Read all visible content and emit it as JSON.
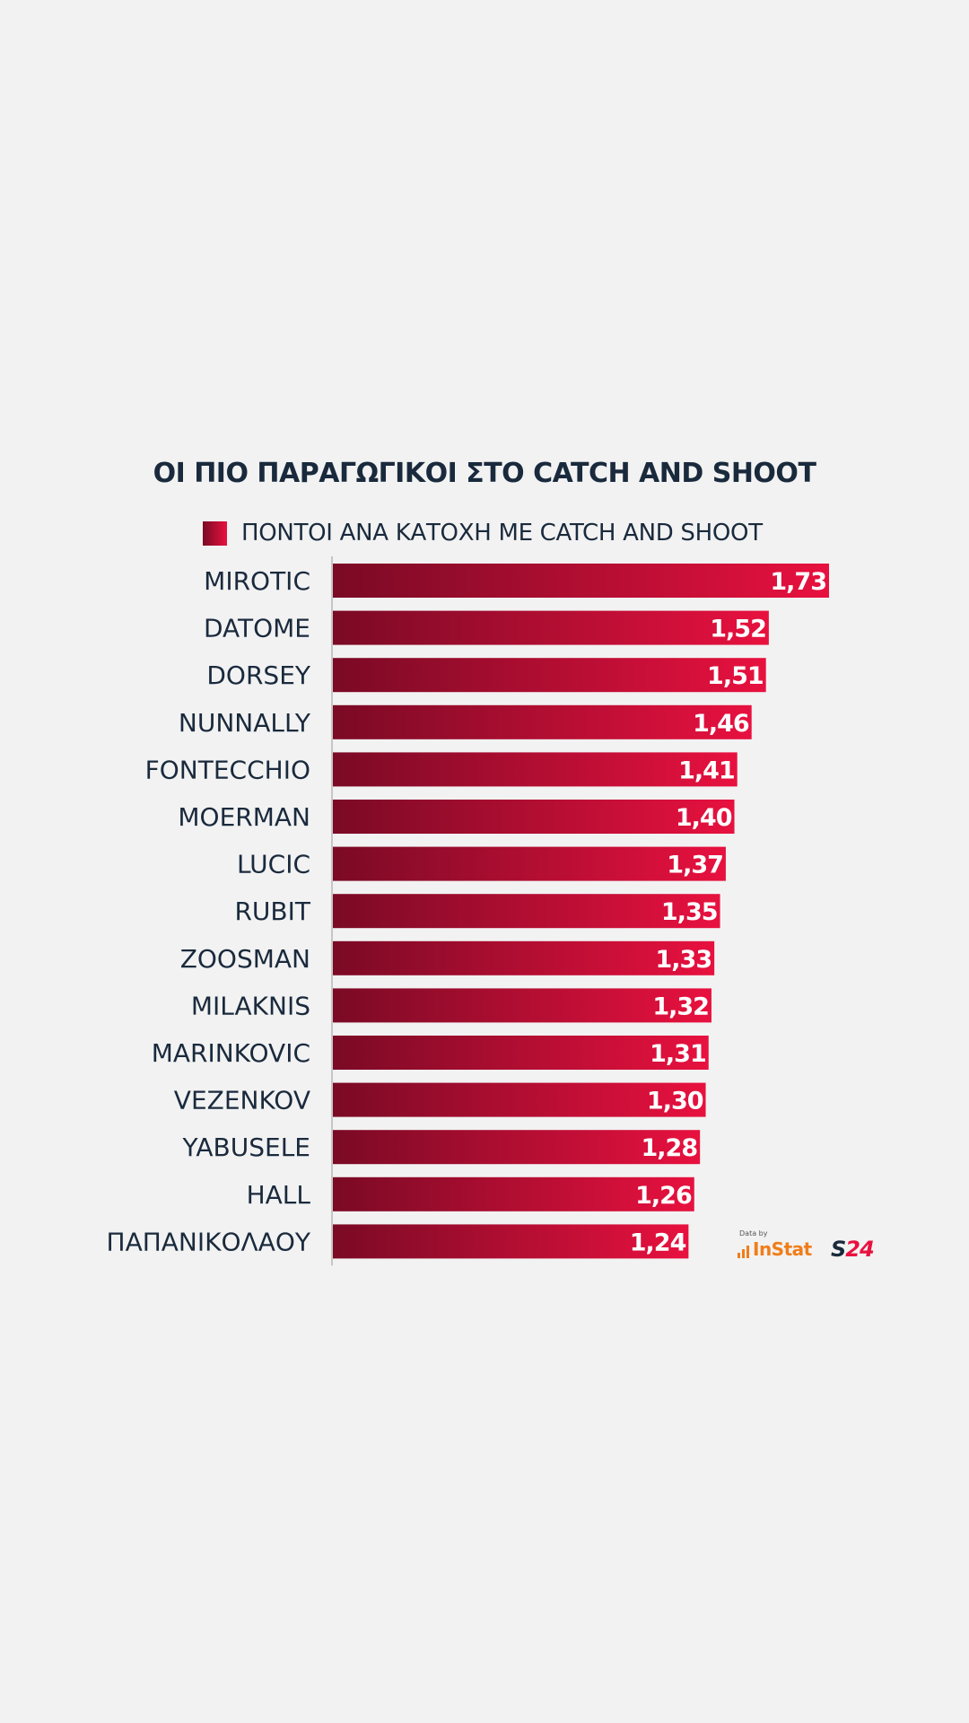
{
  "chart_data": {
    "type": "bar",
    "orientation": "horizontal",
    "title": "ΟΙ ΠΙΟ ΠΑΡΑΓΩΓΙΚΟΙ ΣΤΟ CATCH AND SHOOT",
    "categories": [
      "MIROTIC",
      "DATOME",
      "DORSEY",
      "NUNNALLY",
      "FONTECCHIO",
      "MOERMAN",
      "LUCIC",
      "RUBIT",
      "ZOOSMAN",
      "MILAKNIS",
      "MARINKOVIC",
      "VEZENKOV",
      "YABUSELE",
      "HALL",
      "ΠΑΠΑΝΙΚΟΛΑΟΥ"
    ],
    "series": [
      {
        "name": "ΠΟΝΤΟΙ ΑΝΑ ΚΑΤΟΧΗ ΜΕ CATCH AND SHOOT",
        "values": [
          1.73,
          1.52,
          1.51,
          1.46,
          1.41,
          1.4,
          1.37,
          1.35,
          1.33,
          1.32,
          1.31,
          1.3,
          1.28,
          1.26,
          1.24
        ],
        "labels": [
          "1,73",
          "1,52",
          "1,51",
          "1,46",
          "1,41",
          "1,40",
          "1,37",
          "1,35",
          "1,33",
          "1,32",
          "1,31",
          "1,30",
          "1,28",
          "1,26",
          "1,24"
        ],
        "color_start": "#7a0a25",
        "color_end": "#e8113f"
      }
    ],
    "xlim": [
      0,
      1.73
    ],
    "grid": false,
    "legend_position": "top"
  },
  "watermark": {
    "data_by": "Data by",
    "instat": "InStat",
    "s24_s": "S",
    "s24_num": "24"
  },
  "colors": {
    "text": "#1a2a3d",
    "background": "#f2f2f2",
    "value_label": "#ffffff"
  }
}
